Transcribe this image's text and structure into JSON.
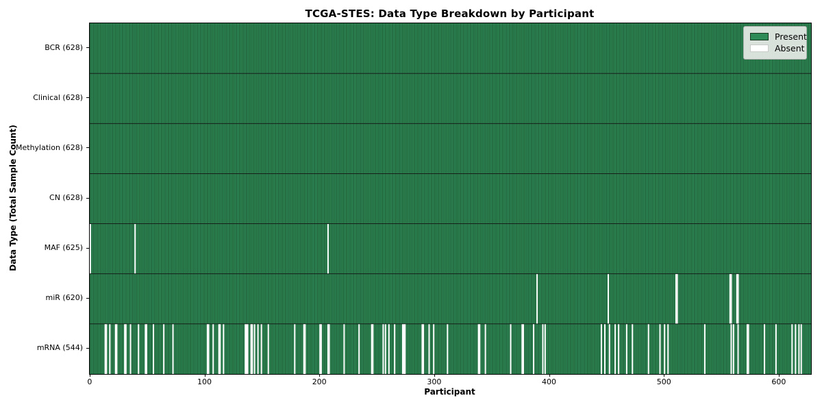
{
  "chart_data": {
    "type": "heatmap",
    "title": "TCGA-STES: Data Type Breakdown by Participant",
    "xlabel": "Participant",
    "ylabel": "Data Type (Total Sample Count)",
    "n_participants": 628,
    "x_axis": {
      "min": 0,
      "max": 628,
      "ticks": [
        0,
        100,
        200,
        300,
        400,
        500,
        600
      ]
    },
    "grid": false,
    "legend_position": "upper right",
    "legend": [
      {
        "label": "Present",
        "color": "#2e8b57"
      },
      {
        "label": "Absent",
        "color": "#ffffff"
      }
    ],
    "colors": {
      "present": "#2e8b57",
      "absent": "#ffffff",
      "bar_edge": "#16381f",
      "row_separator": "#131313",
      "axis": "#000000"
    },
    "rows": [
      {
        "label": "BCR (628)",
        "data_type": "BCR",
        "present_count": 628,
        "absent_participants": []
      },
      {
        "label": "Clinical (628)",
        "data_type": "Clinical",
        "present_count": 628,
        "absent_participants": []
      },
      {
        "label": "Methylation (628)",
        "data_type": "Methylation",
        "present_count": 628,
        "absent_participants": []
      },
      {
        "label": "CN (628)",
        "data_type": "CN",
        "present_count": 628,
        "absent_participants": []
      },
      {
        "label": "MAF (625)",
        "data_type": "MAF",
        "present_count": 625,
        "absent_participants": [
          0,
          39,
          207
        ]
      },
      {
        "label": "miR (620)",
        "data_type": "miR",
        "present_count": 620,
        "absent_participants": [
          389,
          451,
          510,
          511,
          557,
          558,
          563,
          564
        ]
      },
      {
        "label": "mRNA (544)",
        "data_type": "mRNA",
        "present_count": 544,
        "absent_participants": [
          13,
          14,
          17,
          22,
          23,
          30,
          31,
          35,
          42,
          48,
          49,
          55,
          64,
          72,
          102,
          103,
          107,
          112,
          113,
          116,
          135,
          136,
          137,
          140,
          141,
          143,
          146,
          149,
          155,
          178,
          186,
          187,
          200,
          201,
          207,
          208,
          221,
          234,
          245,
          246,
          255,
          257,
          260,
          265,
          272,
          273,
          274,
          289,
          290,
          295,
          299,
          311,
          338,
          339,
          344,
          366,
          376,
          377,
          386,
          394,
          396,
          445,
          448,
          452,
          457,
          460,
          467,
          472,
          486,
          496,
          500,
          503,
          535,
          558,
          560,
          564,
          572,
          573,
          587,
          597,
          611,
          614,
          617,
          619
        ]
      }
    ]
  }
}
